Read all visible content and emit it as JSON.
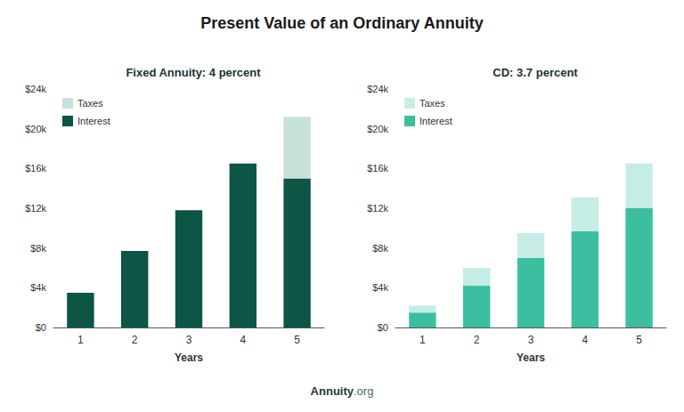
{
  "title": "Present Value of an Ordinary Annuity",
  "annotations": [
    "Annuity",
    ".org"
  ],
  "chart_data": [
    {
      "type": "bar",
      "title": "Fixed Annuity: 4 percent",
      "categories": [
        "1",
        "2",
        "3",
        "4",
        "5"
      ],
      "xlabel": "Years",
      "series": [
        {
          "name": "Interest",
          "color": "#0d5545",
          "values": [
            3500,
            7700,
            11800,
            16500,
            15000
          ]
        },
        {
          "name": "Taxes",
          "color": "#c8e0da",
          "values": [
            0,
            0,
            0,
            0,
            6200
          ]
        }
      ],
      "stacked": true,
      "ylim": [
        0,
        24000
      ],
      "yticks": [
        {
          "value": 0,
          "label": "$0"
        },
        {
          "value": 4000,
          "label": "$4k"
        },
        {
          "value": 8000,
          "label": "$8k"
        },
        {
          "value": 12000,
          "label": "$12k"
        },
        {
          "value": 16000,
          "label": "$16k"
        },
        {
          "value": 20000,
          "label": "$20k"
        },
        {
          "value": 24000,
          "label": "$24k"
        }
      ],
      "legend": "upper left",
      "grid": false
    },
    {
      "type": "bar",
      "title": "CD: 3.7 percent",
      "categories": [
        "1",
        "2",
        "3",
        "4",
        "5"
      ],
      "xlabel": "Years",
      "series": [
        {
          "name": "Interest",
          "color": "#3bbfa0",
          "values": [
            1500,
            4200,
            7000,
            9700,
            12000
          ]
        },
        {
          "name": "Taxes",
          "color": "#c5ede5",
          "values": [
            700,
            1800,
            2500,
            3400,
            4500
          ]
        }
      ],
      "stacked": true,
      "ylim": [
        0,
        24000
      ],
      "yticks": [
        {
          "value": 0,
          "label": "$0"
        },
        {
          "value": 4000,
          "label": "$4k"
        },
        {
          "value": 8000,
          "label": "$8k"
        },
        {
          "value": 12000,
          "label": "$12k"
        },
        {
          "value": 16000,
          "label": "$16k"
        },
        {
          "value": 20000,
          "label": "$20k"
        },
        {
          "value": 24000,
          "label": "$24k"
        }
      ],
      "legend": "upper left",
      "grid": false
    }
  ]
}
